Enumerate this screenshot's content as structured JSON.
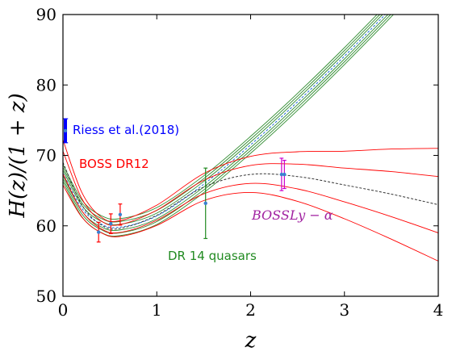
{
  "chart_data": {
    "type": "line",
    "title": "",
    "xlabel": "z",
    "ylabel": "H(z)/(1 + z)",
    "xlim": [
      0,
      4
    ],
    "ylim": [
      50,
      90
    ],
    "xticks": [
      0,
      1,
      2,
      3,
      4
    ],
    "yticks": [
      50,
      60,
      70,
      80,
      90
    ],
    "x_tick_labels": [
      "0",
      "1",
      "2",
      "3",
      "4"
    ],
    "y_tick_labels": [
      "50",
      "60",
      "70",
      "80",
      "90"
    ],
    "grid": false,
    "series": [
      {
        "kind": "lcdm-band",
        "color": "#2e8b2e",
        "x": [
          0,
          0.2,
          0.4,
          0.6,
          1.0,
          1.5,
          2.0,
          2.5,
          3.0,
          3.5,
          4.0
        ],
        "center": [
          67.5,
          62.5,
          60.3,
          59.8,
          61.4,
          65.9,
          71.5,
          77.6,
          84.1,
          90.9,
          97.9
        ],
        "offsets": [
          -1.2,
          -0.8,
          -0.4,
          0,
          0.4,
          0.8,
          1.2
        ]
      },
      {
        "kind": "reconstruction",
        "color": "#ff0000",
        "x": [
          0,
          0.2,
          0.4,
          0.6,
          1.0,
          1.5,
          2.0,
          2.5,
          3.0,
          3.5,
          4.0
        ],
        "center": [
          69.0,
          63.0,
          60.2,
          59.6,
          61.5,
          65.5,
          67.3,
          67.0,
          65.8,
          64.5,
          63.0
        ],
        "offsets": [
          -3.2,
          -1.6,
          0,
          1.6,
          3.2
        ],
        "offset_growth": [
          1.0,
          0.55,
          0.35,
          0.35,
          0.45,
          0.6,
          0.8,
          1.1,
          1.5,
          2.0,
          2.5
        ]
      }
    ],
    "data_points": [
      {
        "group": "Riess et al.(2018)",
        "color": "#0000ff",
        "x": 0.0,
        "y": 73.5,
        "err": 1.7
      },
      {
        "group": "BOSS DR12",
        "color": "#ff0000",
        "x": 0.38,
        "y": 59.1,
        "err": 1.4
      },
      {
        "group": "BOSS DR12",
        "color": "#ff0000",
        "x": 0.51,
        "y": 60.3,
        "err": 1.4
      },
      {
        "group": "BOSS DR12",
        "color": "#ff0000",
        "x": 0.61,
        "y": 61.6,
        "err": 1.5
      },
      {
        "group": "DR 14 quasars",
        "color": "#228b22",
        "x": 1.52,
        "y": 63.2,
        "err": 5.0
      },
      {
        "group": "BOSSLy-alpha",
        "color": "#cc00cc",
        "x": 2.33,
        "y": 67.3,
        "err": 2.3
      },
      {
        "group": "BOSSLy-alpha",
        "color": "#cc00cc",
        "x": 2.36,
        "y": 67.3,
        "err": 2.0
      }
    ],
    "annotations": [
      {
        "text": "Riess et al.(2018)",
        "color": "#0000ff",
        "key": "riess"
      },
      {
        "text": "BOSS DR12",
        "color": "#ff0000",
        "key": "boss"
      },
      {
        "text": "DR 14 quasars",
        "color": "#228b22",
        "key": "dr14"
      },
      {
        "text": "BOSSLy − α",
        "color": "#a020a0",
        "key": "lya"
      }
    ]
  }
}
